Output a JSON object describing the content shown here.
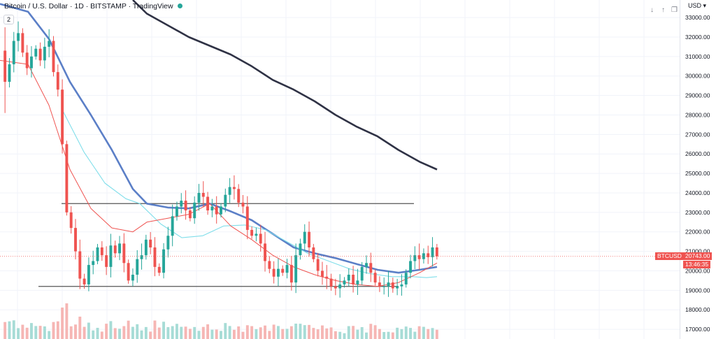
{
  "header": {
    "title": "Bitcoin / U.S. Dollar · 1D · BITSTAMP · TradingView",
    "indicator_badge": "2"
  },
  "toolbar": {
    "currency": "USD",
    "icons": [
      "down-arrow-icon",
      "up-arrow-icon",
      "restore-icon"
    ]
  },
  "price_axis": {
    "ticks": [
      "33000.00",
      "32000.00",
      "31000.00",
      "30000.00",
      "29000.00",
      "28000.00",
      "27000.00",
      "26000.00",
      "25000.00",
      "24000.00",
      "23000.00",
      "22000.00",
      "21000.00",
      "20000.00",
      "19000.00",
      "18000.00",
      "17000.00"
    ]
  },
  "labels": {
    "symbol": "BTCUSD",
    "last_price": "20743.00",
    "countdown": "13:46:35"
  },
  "colors": {
    "up": "#26a69a",
    "down": "#ef5350",
    "ma_fast": "#ef5350",
    "ma_mid": "#5b7fc7",
    "ma_light": "#80deea",
    "ma_slow": "#2f3245",
    "hline": "#555555"
  },
  "chart_data": {
    "type": "candlestick",
    "ylim": [
      16500,
      33900
    ],
    "last_price": 20743,
    "horizontal_lines": [
      23450,
      19200
    ],
    "ohlc_start": [
      31300,
      32500,
      28100,
      29700
    ],
    "closes": [
      29700,
      30600,
      31800,
      32200,
      31200,
      30400,
      31000,
      31400,
      30800,
      31500,
      31800,
      30200,
      29300,
      26500,
      23000,
      22200,
      21000,
      19600,
      19300,
      20300,
      20500,
      21200,
      20800,
      20200,
      21300,
      20900,
      21400,
      20400,
      19500,
      19800,
      20600,
      20800,
      21600,
      21200,
      20200,
      19900,
      21100,
      21800,
      22800,
      23300,
      23600,
      23100,
      22700,
      23500,
      24000,
      23800,
      23100,
      23300,
      22900,
      23300,
      23900,
      24300,
      24200,
      23500,
      23300,
      22100,
      21800,
      21900,
      21400,
      20500,
      20100,
      19700,
      20100,
      19900,
      20300,
      19400,
      20800,
      21400,
      22000,
      21200,
      20600,
      20000,
      19700,
      19600,
      19200,
      19100,
      19300,
      19500,
      19800,
      19300,
      19500,
      20200,
      20400,
      19900,
      19400,
      19200,
      19200,
      19400,
      19100,
      19200,
      19300,
      19900,
      20500,
      20800,
      20600,
      20900,
      20700,
      21200,
      20743
    ],
    "moving_averages": [
      {
        "points": [
          [
            190,
            33900
          ],
          [
            210,
            33200
          ],
          [
            240,
            32600
          ],
          [
            270,
            32000
          ],
          [
            300,
            31550
          ],
          [
            330,
            31100
          ],
          [
            360,
            30500
          ],
          [
            390,
            29800
          ],
          [
            420,
            29300
          ],
          [
            450,
            28700
          ],
          [
            480,
            28000
          ],
          [
            510,
            27400
          ],
          [
            540,
            26900
          ],
          [
            570,
            26200
          ],
          [
            600,
            25600
          ],
          [
            625,
            25200
          ]
        ]
      },
      {
        "points": [
          [
            0,
            33700
          ],
          [
            40,
            33300
          ],
          [
            70,
            31900
          ],
          [
            100,
            29700
          ],
          [
            130,
            28000
          ],
          [
            160,
            26200
          ],
          [
            190,
            24200
          ],
          [
            210,
            23450
          ],
          [
            240,
            23250
          ],
          [
            270,
            23200
          ],
          [
            300,
            23450
          ],
          [
            330,
            23050
          ],
          [
            360,
            22600
          ],
          [
            390,
            21900
          ],
          [
            420,
            21200
          ],
          [
            450,
            20900
          ],
          [
            480,
            20650
          ],
          [
            510,
            20350
          ],
          [
            540,
            20050
          ],
          [
            570,
            19900
          ],
          [
            600,
            20050
          ],
          [
            625,
            20200
          ]
        ]
      },
      {
        "points": [
          [
            90,
            28200
          ],
          [
            120,
            26100
          ],
          [
            150,
            24500
          ],
          [
            180,
            23700
          ],
          [
            200,
            23450
          ],
          [
            230,
            22400
          ],
          [
            260,
            21700
          ],
          [
            290,
            21800
          ],
          [
            320,
            22300
          ],
          [
            350,
            22350
          ],
          [
            380,
            22100
          ],
          [
            410,
            21500
          ],
          [
            440,
            20900
          ],
          [
            470,
            20500
          ],
          [
            500,
            20100
          ],
          [
            530,
            19850
          ],
          [
            560,
            19700
          ],
          [
            590,
            19700
          ],
          [
            610,
            19650
          ],
          [
            625,
            19700
          ]
        ]
      },
      {
        "points": [
          [
            0,
            30800
          ],
          [
            40,
            30600
          ],
          [
            70,
            28500
          ],
          [
            100,
            25200
          ],
          [
            130,
            23200
          ],
          [
            160,
            22200
          ],
          [
            190,
            22000
          ],
          [
            210,
            22500
          ],
          [
            240,
            22700
          ],
          [
            270,
            22900
          ],
          [
            300,
            23450
          ],
          [
            330,
            22300
          ],
          [
            360,
            21600
          ],
          [
            390,
            20800
          ],
          [
            420,
            20200
          ],
          [
            450,
            19800
          ],
          [
            480,
            19500
          ],
          [
            510,
            19300
          ],
          [
            540,
            19200
          ],
          [
            570,
            19400
          ],
          [
            600,
            19900
          ],
          [
            625,
            20400
          ]
        ]
      }
    ]
  }
}
